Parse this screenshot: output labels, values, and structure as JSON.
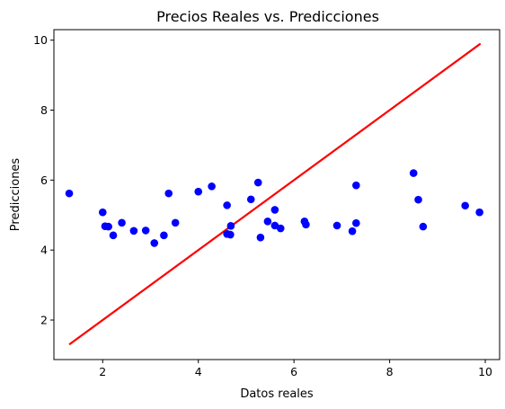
{
  "chart_data": {
    "type": "scatter",
    "title": "Precios Reales vs. Predicciones",
    "xlabel": "Datos reales",
    "ylabel": "Predicciones",
    "xlim": [
      0.98,
      10.3
    ],
    "ylim": [
      0.87,
      10.3
    ],
    "xticks": [
      2,
      4,
      6,
      8,
      10
    ],
    "yticks": [
      2,
      4,
      6,
      8,
      10
    ],
    "grid": false,
    "series": [
      {
        "kind": "scatter",
        "color": "#0000ff",
        "points": [
          [
            1.3,
            5.62
          ],
          [
            2.0,
            5.08
          ],
          [
            2.05,
            4.68
          ],
          [
            2.12,
            4.67
          ],
          [
            2.22,
            4.42
          ],
          [
            2.4,
            4.78
          ],
          [
            2.65,
            4.55
          ],
          [
            2.9,
            4.56
          ],
          [
            3.08,
            4.2
          ],
          [
            3.28,
            4.42
          ],
          [
            3.38,
            5.62
          ],
          [
            3.52,
            4.78
          ],
          [
            4.0,
            5.67
          ],
          [
            4.28,
            5.82
          ],
          [
            4.6,
            5.28
          ],
          [
            4.6,
            4.46
          ],
          [
            4.67,
            4.44
          ],
          [
            4.68,
            4.69
          ],
          [
            5.1,
            5.45
          ],
          [
            5.25,
            5.93
          ],
          [
            5.3,
            4.36
          ],
          [
            5.45,
            4.82
          ],
          [
            5.6,
            5.15
          ],
          [
            5.6,
            4.7
          ],
          [
            5.72,
            4.62
          ],
          [
            6.22,
            4.82
          ],
          [
            6.25,
            4.73
          ],
          [
            6.9,
            4.7
          ],
          [
            7.22,
            4.54
          ],
          [
            7.3,
            5.85
          ],
          [
            7.3,
            4.77
          ],
          [
            8.5,
            6.2
          ],
          [
            8.6,
            5.44
          ],
          [
            8.7,
            4.67
          ],
          [
            9.58,
            5.27
          ],
          [
            9.88,
            5.08
          ]
        ]
      },
      {
        "kind": "line",
        "color": "#ff0000",
        "points": [
          [
            1.3,
            1.3
          ],
          [
            9.9,
            9.9
          ]
        ]
      }
    ]
  }
}
